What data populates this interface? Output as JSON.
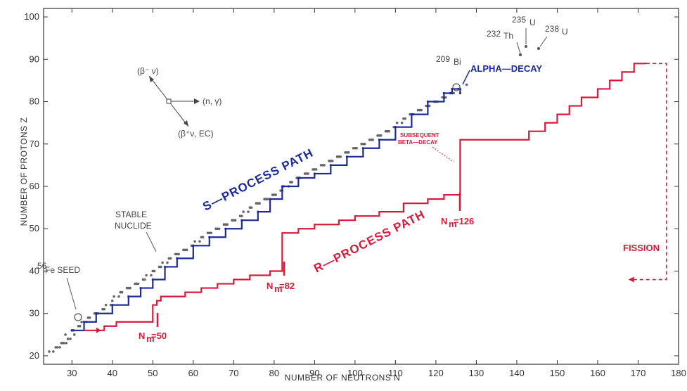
{
  "chart_data": {
    "type": "line",
    "xlabel": "NUMBER OF NEUTRONS N",
    "ylabel": "NUMBER OF PROTONS Z",
    "xlim": [
      23,
      180
    ],
    "ylim": [
      18,
      102
    ],
    "x_ticks": [
      30,
      40,
      50,
      60,
      70,
      80,
      90,
      100,
      110,
      120,
      130,
      140,
      150,
      160,
      170,
      180
    ],
    "y_ticks": [
      20,
      30,
      40,
      50,
      60,
      70,
      80,
      90,
      100
    ],
    "grid": false,
    "series": [
      {
        "name": "S—PROCESS PATH",
        "color": "#1a2a9a",
        "points": [
          [
            30,
            26
          ],
          [
            33,
            28
          ],
          [
            36,
            30
          ],
          [
            40,
            32
          ],
          [
            44,
            34
          ],
          [
            47,
            36
          ],
          [
            50,
            38
          ],
          [
            53,
            41
          ],
          [
            56,
            43
          ],
          [
            60,
            46
          ],
          [
            64,
            48
          ],
          [
            68,
            50
          ],
          [
            72,
            52
          ],
          [
            76,
            54
          ],
          [
            79,
            57
          ],
          [
            82,
            60
          ],
          [
            86,
            62
          ],
          [
            90,
            63
          ],
          [
            94,
            65
          ],
          [
            98,
            67
          ],
          [
            102,
            69
          ],
          [
            106,
            71
          ],
          [
            110,
            74
          ],
          [
            114,
            77
          ],
          [
            118,
            80
          ],
          [
            122,
            82
          ],
          [
            124,
            83
          ],
          [
            126,
            82
          ]
        ]
      },
      {
        "name": "R—PROCESS PATH",
        "color": "#d81a3a",
        "points": [
          [
            33,
            26
          ],
          [
            38,
            27
          ],
          [
            41,
            28
          ],
          [
            45,
            28
          ],
          [
            50,
            28
          ],
          [
            50,
            32
          ],
          [
            51,
            33
          ],
          [
            52,
            34
          ],
          [
            55,
            34
          ],
          [
            58,
            35
          ],
          [
            62,
            36
          ],
          [
            66,
            37
          ],
          [
            70,
            38
          ],
          [
            74,
            39
          ],
          [
            79,
            40
          ],
          [
            82,
            41
          ],
          [
            82,
            49
          ],
          [
            86,
            50
          ],
          [
            90,
            51
          ],
          [
            96,
            52
          ],
          [
            100,
            53
          ],
          [
            106,
            54
          ],
          [
            112,
            56
          ],
          [
            118,
            57
          ],
          [
            122,
            58
          ],
          [
            126,
            59
          ],
          [
            126,
            71
          ],
          [
            130,
            71
          ],
          [
            135,
            71
          ],
          [
            140,
            71
          ],
          [
            143,
            73
          ],
          [
            147,
            75
          ],
          [
            150,
            77
          ],
          [
            153,
            79
          ],
          [
            156,
            81
          ],
          [
            160,
            83
          ],
          [
            163,
            85
          ],
          [
            166,
            87
          ],
          [
            169,
            89
          ],
          [
            172,
            89
          ]
        ]
      },
      {
        "name": "FISSION",
        "color": "#d81a3a",
        "dashed": true,
        "points": [
          [
            172,
            89
          ],
          [
            177,
            89
          ],
          [
            177,
            38
          ],
          [
            169,
            38
          ]
        ]
      }
    ],
    "stable_nuclides": [
      [
        26,
        22
      ],
      [
        27,
        22
      ],
      [
        28,
        23
      ],
      [
        29,
        24
      ],
      [
        30,
        26
      ],
      [
        32,
        27
      ],
      [
        34,
        29
      ],
      [
        36,
        30
      ],
      [
        38,
        31
      ],
      [
        40,
        33
      ],
      [
        42,
        35
      ],
      [
        44,
        36
      ],
      [
        46,
        37
      ],
      [
        48,
        38
      ],
      [
        50,
        40
      ],
      [
        52,
        41
      ],
      [
        54,
        43
      ],
      [
        56,
        44
      ],
      [
        58,
        45
      ],
      [
        60,
        46
      ],
      [
        62,
        48
      ],
      [
        64,
        49
      ],
      [
        66,
        50
      ],
      [
        68,
        51
      ],
      [
        70,
        52
      ],
      [
        72,
        53
      ],
      [
        74,
        55
      ],
      [
        76,
        56
      ],
      [
        78,
        57
      ],
      [
        80,
        58
      ],
      [
        82,
        59
      ],
      [
        84,
        61
      ],
      [
        86,
        62
      ],
      [
        88,
        63
      ],
      [
        90,
        64
      ],
      [
        92,
        65
      ],
      [
        94,
        66
      ],
      [
        96,
        67
      ],
      [
        98,
        68
      ],
      [
        100,
        69
      ],
      [
        102,
        70
      ],
      [
        104,
        71
      ],
      [
        106,
        72
      ],
      [
        108,
        73
      ],
      [
        110,
        74
      ],
      [
        112,
        76
      ],
      [
        114,
        77
      ],
      [
        116,
        78
      ],
      [
        118,
        79
      ],
      [
        120,
        80
      ],
      [
        122,
        81
      ],
      [
        124,
        82
      ],
      [
        126,
        83
      ]
    ],
    "annotations": {
      "s_process": "S—PROCESS PATH",
      "r_process": "R—PROCESS PATH",
      "fe_seed": "Fe SEED",
      "fe_seed_mass": "56",
      "stable": [
        "STABLE",
        "NUCLIDE"
      ],
      "nm50": "N",
      "nm50_sub": "m",
      "nm50_val": "=50",
      "nm82_val": "=82",
      "nm126_val": "=126",
      "subsequent": [
        "SUBSEQUENT",
        "BETA—DECAY"
      ],
      "alpha": "ALPHA—DECAY",
      "fission": "FISSION",
      "bi_mass": "209",
      "bi": "Bi",
      "th_mass": "232",
      "th": "Th",
      "u235_mass": "235",
      "u238_mass": "238",
      "u": "U",
      "decay_beta_minus": "(β⁻ ν)",
      "decay_ng": "(n, γ)",
      "decay_beta_plus": "(β⁺ν, EC)"
    }
  }
}
